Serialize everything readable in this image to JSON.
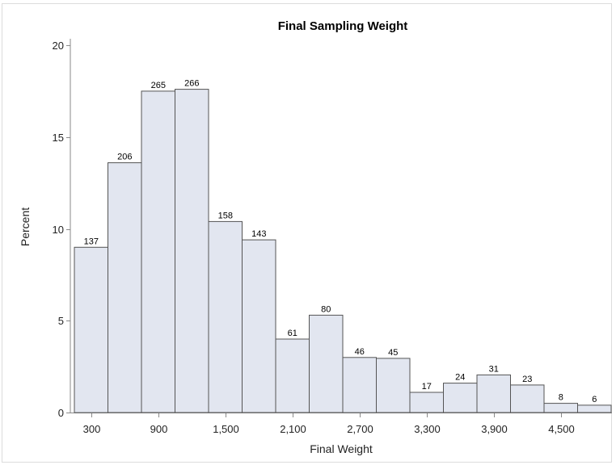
{
  "chart_data": {
    "type": "bar",
    "title": "Final Sampling Weight",
    "xlabel": "Final Weight",
    "ylabel": "Percent",
    "ylim": [
      0,
      20
    ],
    "yticks": [
      0,
      5,
      10,
      15,
      20
    ],
    "xticks": [
      "300",
      "900",
      "1,500",
      "2,100",
      "2,700",
      "3,300",
      "3,900",
      "4,500"
    ],
    "bin_midpoints": [
      300,
      600,
      900,
      1200,
      1500,
      1800,
      2100,
      2400,
      2700,
      3000,
      3300,
      3600,
      3900,
      4200,
      4500,
      4800
    ],
    "bin_width": 300,
    "values": [
      9.0,
      13.6,
      17.5,
      17.6,
      10.4,
      9.4,
      4.0,
      5.3,
      3.0,
      2.95,
      1.1,
      1.6,
      2.05,
      1.5,
      0.5,
      0.4
    ],
    "counts": [
      "137",
      "206",
      "265",
      "266",
      "158",
      "143",
      "61",
      "80",
      "46",
      "45",
      "17",
      "24",
      "31",
      "23",
      "8",
      "6"
    ],
    "grid": false,
    "legend": "none",
    "bar_color": "#e2e6f0",
    "bar_outline": "#545454"
  }
}
